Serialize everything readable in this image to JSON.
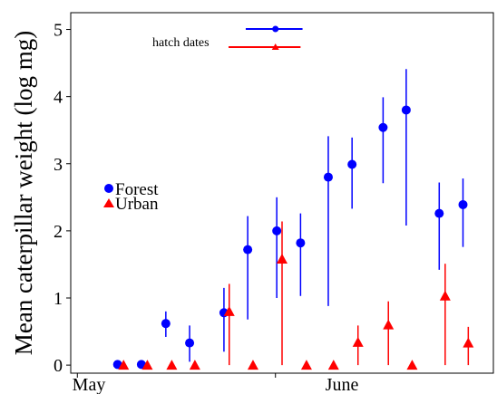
{
  "chart_data": {
    "type": "scatter",
    "ylabel": "Mean caterpillar weight (log mg)",
    "xlabel": "",
    "x_ticks": [
      "May",
      "June"
    ],
    "y_ticks": [
      "0",
      "1",
      "2",
      "3",
      "4",
      "5"
    ],
    "ylim": [
      -0.12,
      5.25
    ],
    "grid": false,
    "legend": {
      "placement": "left",
      "entries": [
        "Forest",
        "Urban"
      ]
    },
    "annotation": "hatch dates",
    "colors": {
      "Forest": "#0000ff",
      "Urban": "#ff0000"
    },
    "series": [
      {
        "name": "Forest",
        "marker": "circle",
        "points": [
          {
            "x": 7.1,
            "y": 0.01,
            "low": 0.0,
            "high": 0.02
          },
          {
            "x": 10.7,
            "y": 0.01,
            "low": 0.0,
            "high": 0.02
          },
          {
            "x": 14.4,
            "y": 0.62,
            "low": 0.42,
            "high": 0.8
          },
          {
            "x": 18.0,
            "y": 0.33,
            "low": 0.05,
            "high": 0.59
          },
          {
            "x": 23.2,
            "y": 0.78,
            "low": 0.2,
            "high": 1.15
          },
          {
            "x": 26.8,
            "y": 1.72,
            "low": 0.68,
            "high": 2.22
          },
          {
            "x": 31.2,
            "y": 2.0,
            "low": 1.0,
            "high": 2.5
          },
          {
            "x": 34.8,
            "y": 1.82,
            "low": 1.03,
            "high": 2.26
          },
          {
            "x": 39.0,
            "y": 2.8,
            "low": 0.88,
            "high": 3.41
          },
          {
            "x": 42.6,
            "y": 2.99,
            "low": 2.33,
            "high": 3.39
          },
          {
            "x": 47.3,
            "y": 3.54,
            "low": 2.71,
            "high": 3.99
          },
          {
            "x": 50.8,
            "y": 3.8,
            "low": 2.08,
            "high": 4.41
          },
          {
            "x": 55.8,
            "y": 2.26,
            "low": 1.42,
            "high": 2.72
          },
          {
            "x": 59.4,
            "y": 2.39,
            "low": 1.76,
            "high": 2.78
          }
        ]
      },
      {
        "name": "Urban",
        "marker": "triangle",
        "points": [
          {
            "x": 8.0,
            "y": 0.0,
            "low": 0.0,
            "high": 0.01
          },
          {
            "x": 11.6,
            "y": 0.0,
            "low": 0.0,
            "high": 0.01
          },
          {
            "x": 15.3,
            "y": 0.0,
            "low": 0.0,
            "high": 0.01
          },
          {
            "x": 18.8,
            "y": 0.0,
            "low": 0.0,
            "high": 0.01
          },
          {
            "x": 24.0,
            "y": 0.8,
            "low": 0.0,
            "high": 1.21
          },
          {
            "x": 27.6,
            "y": 0.0,
            "low": 0.0,
            "high": 0.01
          },
          {
            "x": 32.0,
            "y": 1.58,
            "low": 0.0,
            "high": 2.14
          },
          {
            "x": 35.7,
            "y": 0.0,
            "low": 0.0,
            "high": 0.01
          },
          {
            "x": 39.8,
            "y": 0.0,
            "low": 0.0,
            "high": 0.01
          },
          {
            "x": 43.5,
            "y": 0.34,
            "low": 0.0,
            "high": 0.59
          },
          {
            "x": 48.1,
            "y": 0.6,
            "low": 0.0,
            "high": 0.95
          },
          {
            "x": 51.7,
            "y": 0.0,
            "low": 0.0,
            "high": 0.01
          },
          {
            "x": 56.7,
            "y": 1.03,
            "low": 0.0,
            "high": 1.51
          },
          {
            "x": 60.2,
            "y": 0.33,
            "low": 0.0,
            "high": 0.57
          }
        ]
      }
    ],
    "hatch_dates": [
      {
        "name": "Forest",
        "mean": 31.0,
        "low": 26.5,
        "high": 35.1
      },
      {
        "name": "Urban",
        "mean": 31.0,
        "low": 23.9,
        "high": 34.8
      }
    ]
  }
}
